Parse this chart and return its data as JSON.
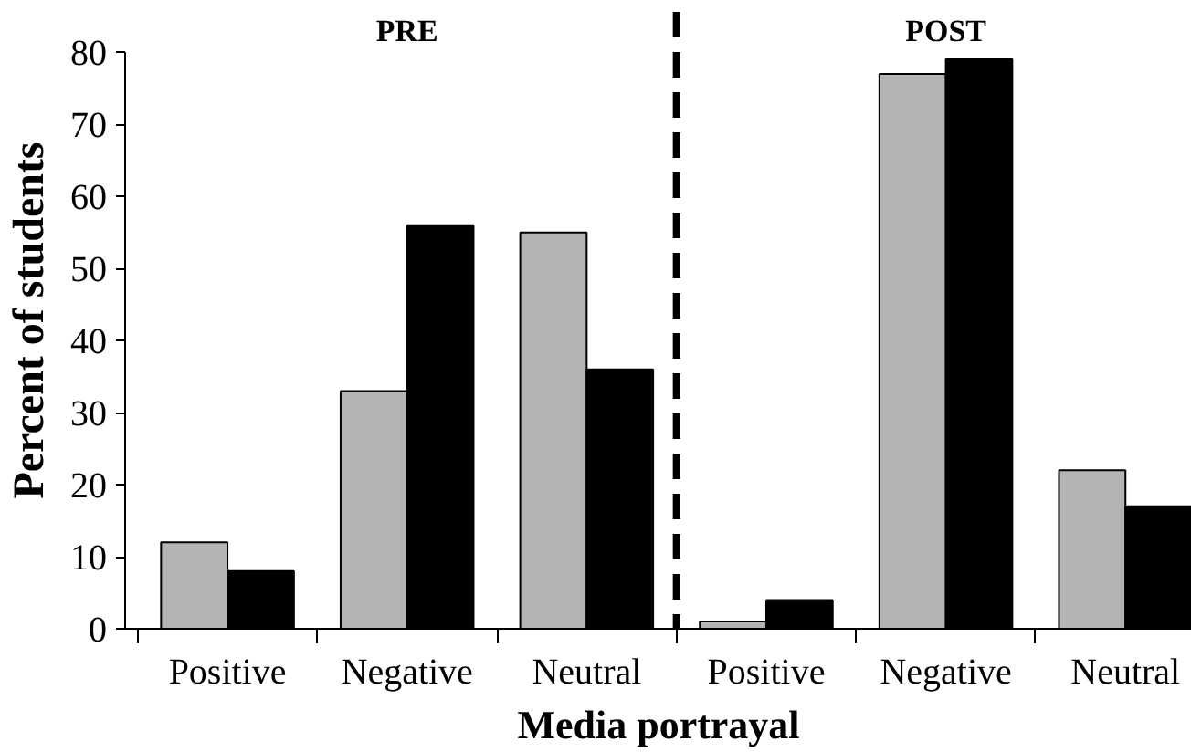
{
  "chart_data": {
    "type": "bar",
    "categories": [
      "Positive",
      "Negative",
      "Neutral",
      "Positive",
      "Negative",
      "Neutral"
    ],
    "series": [
      {
        "color": "#b4b4b4",
        "values": [
          12,
          33,
          55,
          1,
          77,
          22
        ]
      },
      {
        "color": "#000000",
        "values": [
          8,
          56,
          36,
          4,
          79,
          17
        ]
      }
    ],
    "xlabel": "Media portrayal",
    "ylabel": "Percent of students",
    "ylim": [
      0,
      80
    ],
    "yticks": [
      0,
      10,
      20,
      30,
      40,
      50,
      60,
      70,
      80
    ],
    "annotations": [
      "PRE",
      "POST"
    ],
    "grid": false
  }
}
